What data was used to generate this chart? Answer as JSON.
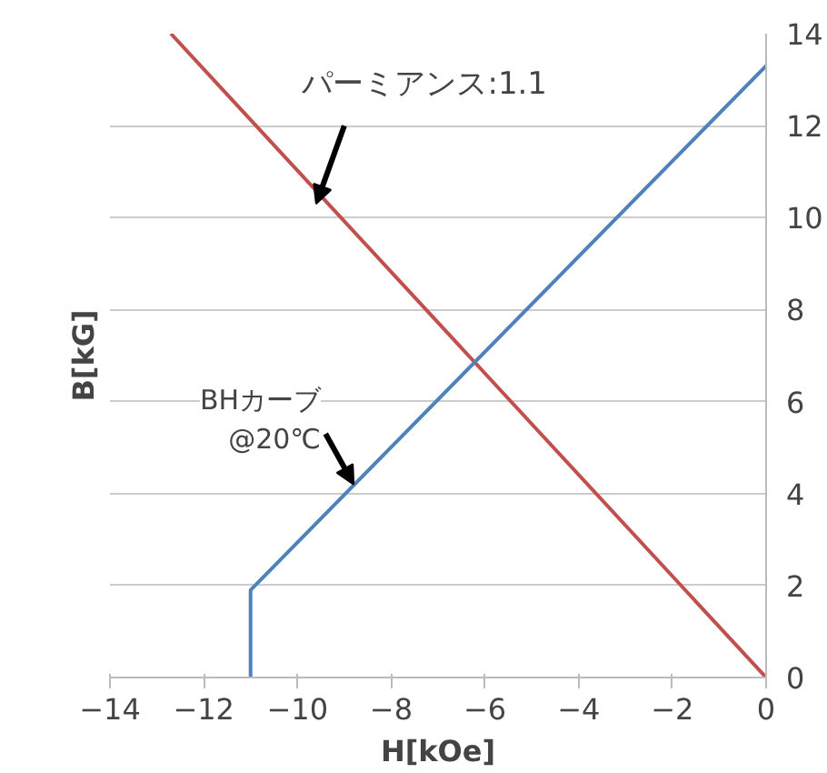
{
  "chart_data": {
    "type": "line",
    "xlabel": "H[kOe]",
    "ylabel": "B[kG]",
    "series": [
      {
        "color": "#c0504d",
        "x": [
          -12.7,
          0
        ],
        "values": [
          14,
          0
        ]
      },
      {
        "color": "#4f81bd",
        "x": [
          -11,
          -11,
          0
        ],
        "values": [
          0,
          1.9,
          13.3
        ]
      }
    ],
    "annotations": [
      {
        "text": "パーミアンス:1.1",
        "x": -9.6,
        "y": 10.3
      },
      {
        "text": "BHカーブ\n@20℃",
        "x": -8.8,
        "y": 4.2
      }
    ],
    "xlim": [
      -14,
      0
    ],
    "ylim": [
      0,
      14
    ],
    "xticks": [
      -14,
      -12,
      -10,
      -8,
      -6,
      -4,
      -2,
      0
    ],
    "yticks": [
      0,
      2,
      4,
      6,
      8,
      10,
      12,
      14
    ],
    "grid": "y",
    "marker": "none",
    "line_style": "solid"
  }
}
